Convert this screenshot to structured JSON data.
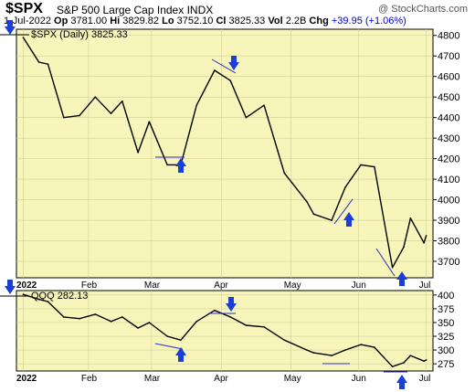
{
  "header": {
    "ticker": "$SPX",
    "name": "S&P 500 Large Cap Index",
    "exchange": "INDX",
    "copyright": "@ StockCharts.com",
    "date": "1-Jul-2022",
    "op_label": "Op",
    "op": "3781.00",
    "hi_label": "Hi",
    "hi": "3829.82",
    "lo_label": "Lo",
    "lo": "3752.10",
    "cl_label": "Cl",
    "cl": "3825.33",
    "vol_label": "Vol",
    "vol": "2.2B",
    "chg_label": "Chg",
    "chg": "+39.95 (+1.06%)"
  },
  "colors": {
    "panel_bg": "#f7f5b9",
    "line": "#000000",
    "grid": "#cfcf9a",
    "arrow": "#1a3fd6",
    "trendline": "#2a2acc"
  },
  "icons": [
    "down-arrow-icon",
    "up-arrow-icon"
  ],
  "chart_data": [
    {
      "type": "line",
      "legend": "$SPX (Daily) 3825.33",
      "x": [
        "2022-01-03",
        "2022-01-10",
        "2022-01-14",
        "2022-01-21",
        "2022-01-28",
        "2022-02-04",
        "2022-02-11",
        "2022-02-16",
        "2022-02-23",
        "2022-02-28",
        "2022-03-08",
        "2022-03-14",
        "2022-03-21",
        "2022-03-29",
        "2022-04-05",
        "2022-04-12",
        "2022-04-20",
        "2022-04-29",
        "2022-05-09",
        "2022-05-12",
        "2022-05-20",
        "2022-05-26",
        "2022-06-02",
        "2022-06-08",
        "2022-06-16",
        "2022-06-21",
        "2022-06-24",
        "2022-06-30",
        "2022-07-01"
      ],
      "y": [
        4790,
        4670,
        4660,
        4400,
        4410,
        4500,
        4420,
        4480,
        4230,
        4380,
        4170,
        4170,
        4460,
        4630,
        4580,
        4400,
        4460,
        4130,
        3990,
        3930,
        3900,
        4060,
        4170,
        4160,
        3670,
        3770,
        3910,
        3790,
        3825
      ],
      "x_ticks": [
        "2022",
        "Feb",
        "Mar",
        "Apr",
        "May",
        "Jun",
        "Jul"
      ],
      "y_ticks": [
        4800,
        4700,
        4600,
        4500,
        4400,
        4300,
        4200,
        4100,
        4000,
        3900,
        3800,
        3700
      ],
      "ylim": [
        3620,
        4830
      ],
      "grid": true
    },
    {
      "type": "line",
      "legend": "QQQ 282.13",
      "x": [
        "2022-01-03",
        "2022-01-10",
        "2022-01-14",
        "2022-01-21",
        "2022-01-28",
        "2022-02-04",
        "2022-02-11",
        "2022-02-16",
        "2022-02-23",
        "2022-02-28",
        "2022-03-08",
        "2022-03-14",
        "2022-03-21",
        "2022-03-29",
        "2022-04-05",
        "2022-04-12",
        "2022-04-20",
        "2022-04-29",
        "2022-05-09",
        "2022-05-12",
        "2022-05-20",
        "2022-05-26",
        "2022-06-02",
        "2022-06-08",
        "2022-06-16",
        "2022-06-21",
        "2022-06-24",
        "2022-06-30",
        "2022-07-01"
      ],
      "y": [
        401,
        392,
        388,
        360,
        357,
        365,
        352,
        360,
        340,
        350,
        325,
        318,
        352,
        372,
        360,
        345,
        342,
        318,
        300,
        295,
        290,
        300,
        310,
        305,
        270,
        277,
        290,
        280,
        282
      ],
      "x_ticks": [
        "2022",
        "Feb",
        "Mar",
        "Apr",
        "May",
        "Jun",
        "Jul"
      ],
      "y_ticks": [
        400,
        375,
        350,
        325,
        300,
        275
      ],
      "ylim": [
        262,
        408
      ],
      "grid": true
    }
  ]
}
